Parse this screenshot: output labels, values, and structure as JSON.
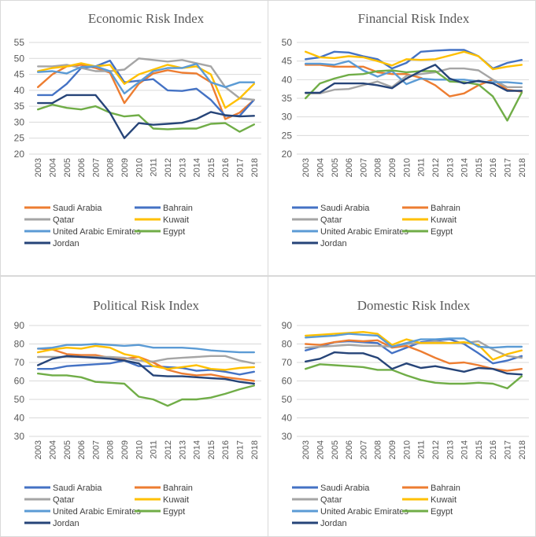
{
  "page": {
    "background": "#ffffff",
    "panel_border_color": "#d9d9d9",
    "gridline_color": "#d9d9d9",
    "title_color": "#595959",
    "axis_label_color": "#595959"
  },
  "chart_data": [
    {
      "id": "economic",
      "type": "line",
      "title": "Economic Risk Index",
      "x": [
        2003,
        2004,
        2005,
        2006,
        2007,
        2008,
        2009,
        2010,
        2011,
        2012,
        2013,
        2014,
        2015,
        2016,
        2017,
        2018
      ],
      "ylim": [
        20,
        55
      ],
      "ystep": 5,
      "grid": true,
      "legend_position": "bottom",
      "series": [
        {
          "name": "Saudi Arabia",
          "color": "#ED7D31",
          "values": [
            41,
            45,
            47.5,
            48,
            47,
            45.5,
            36,
            42,
            45.3,
            46.3,
            45.5,
            45.3,
            42.5,
            31,
            33,
            37
          ]
        },
        {
          "name": "Bahrain",
          "color": "#4472C4",
          "values": [
            38.5,
            38.5,
            42,
            47,
            47.5,
            49.3,
            42.5,
            43,
            43.5,
            40,
            39.8,
            40.5,
            37,
            32,
            32,
            37
          ]
        },
        {
          "name": "Qatar",
          "color": "#A5A5A5",
          "values": [
            47.5,
            47.5,
            48,
            47,
            46,
            46,
            46.5,
            50,
            49.5,
            49,
            49.5,
            48.5,
            47.5,
            41,
            37.5,
            37
          ]
        },
        {
          "name": "Kuwait",
          "color": "#FFC000",
          "values": [
            46,
            47,
            47.5,
            48.5,
            47.5,
            48,
            42,
            45,
            46.5,
            48,
            47,
            47.5,
            45,
            34.5,
            37.5,
            42
          ]
        },
        {
          "name": "United Arabic Emirates",
          "color": "#5B9BD5",
          "values": [
            45.7,
            46,
            45.3,
            47.3,
            47.5,
            46,
            39,
            42.5,
            46,
            47,
            47,
            48.3,
            42.5,
            41,
            42.5,
            42.5
          ]
        },
        {
          "name": "Egypt",
          "color": "#70AD47",
          "values": [
            34,
            35.5,
            34.5,
            34,
            35,
            33,
            31.8,
            32.2,
            28,
            27.8,
            28,
            28,
            29.5,
            29.7,
            27,
            29.3
          ]
        },
        {
          "name": "Jordan",
          "color": "#264478",
          "values": [
            36,
            36,
            38.5,
            38.5,
            38.5,
            33,
            25,
            29.7,
            29.2,
            29.5,
            29.8,
            31,
            33.2,
            32.2,
            31.8,
            32
          ]
        }
      ]
    },
    {
      "id": "financial",
      "type": "line",
      "title": "Financial Risk Index",
      "x": [
        2003,
        2004,
        2005,
        2006,
        2007,
        2008,
        2009,
        2010,
        2011,
        2012,
        2013,
        2014,
        2015,
        2016,
        2017,
        2018
      ],
      "ylim": [
        20,
        50
      ],
      "ystep": 5,
      "grid": true,
      "legend_position": "bottom",
      "series": [
        {
          "name": "Saudi Arabia",
          "color": "#4472C4",
          "values": [
            45.5,
            46,
            47.5,
            47.3,
            46.3,
            45.5,
            43,
            44.5,
            47.5,
            47.8,
            48,
            48,
            46.3,
            43,
            44.5,
            45.3
          ]
        },
        {
          "name": "Bahrain",
          "color": "#ED7D31",
          "values": [
            44,
            44,
            43.5,
            43.5,
            43.5,
            42,
            41.5,
            41.5,
            40.5,
            38.5,
            35.5,
            36.3,
            38.5,
            40,
            37.3,
            36.8
          ]
        },
        {
          "name": "Qatar",
          "color": "#A5A5A5",
          "values": [
            36.3,
            36.3,
            37.3,
            37.5,
            38.5,
            39.5,
            38,
            41,
            41.5,
            42,
            43,
            43,
            42.5,
            40,
            38,
            38
          ]
        },
        {
          "name": "Kuwait",
          "color": "#FFC000",
          "values": [
            47.5,
            46,
            45.8,
            46.3,
            46,
            45,
            43.8,
            45.5,
            45.3,
            45.5,
            46.5,
            47.5,
            46.3,
            42.8,
            43.5,
            44
          ]
        },
        {
          "name": "United Arabic Emirates",
          "color": "#5B9BD5",
          "values": [
            44.3,
            44.3,
            44,
            45,
            42.5,
            40.8,
            42.3,
            38.8,
            40.3,
            40,
            40,
            40,
            39.5,
            39.3,
            39.3,
            39
          ]
        },
        {
          "name": "Egypt",
          "color": "#70AD47",
          "values": [
            35,
            39,
            40.3,
            41.3,
            41.5,
            42.3,
            42.5,
            42,
            42.3,
            42.3,
            39.5,
            39.3,
            38.7,
            35.5,
            29,
            36.5
          ]
        },
        {
          "name": "Jordan",
          "color": "#264478",
          "values": [
            36.5,
            36.5,
            39,
            39,
            39,
            38.5,
            37.7,
            40.3,
            42.3,
            44,
            40.3,
            39,
            39.7,
            39,
            37,
            37
          ]
        }
      ]
    },
    {
      "id": "political",
      "type": "line",
      "title": "Political Risk Index",
      "x": [
        2003,
        2004,
        2005,
        2006,
        2007,
        2008,
        2009,
        2010,
        2011,
        2012,
        2013,
        2014,
        2015,
        2016,
        2017,
        2018
      ],
      "ylim": [
        30,
        90
      ],
      "ystep": 10,
      "grid": true,
      "legend_position": "bottom",
      "series": [
        {
          "name": "Saudi Arabia",
          "color": "#4472C4",
          "values": [
            66.5,
            66.5,
            68,
            68.5,
            69,
            69.5,
            71,
            68,
            68,
            67.5,
            67,
            65.5,
            66,
            65,
            63.5,
            65
          ]
        },
        {
          "name": "Bahrain",
          "color": "#ED7D31",
          "values": [
            77.5,
            77,
            74.5,
            74,
            74,
            72.5,
            72,
            73,
            70,
            66,
            64,
            63,
            63.5,
            62,
            61,
            60
          ]
        },
        {
          "name": "Qatar",
          "color": "#A5A5A5",
          "values": [
            73,
            73,
            73,
            73,
            73,
            73,
            72.5,
            71,
            70.5,
            72,
            72.5,
            73,
            73.5,
            73.5,
            71,
            69.5
          ]
        },
        {
          "name": "Kuwait",
          "color": "#FFC000",
          "values": [
            75.5,
            77,
            78,
            77.5,
            79,
            78,
            74.5,
            73,
            68,
            66.5,
            67.5,
            68.5,
            66.5,
            66,
            67,
            67.5
          ]
        },
        {
          "name": "United Arabic Emirates",
          "color": "#5B9BD5",
          "values": [
            77.5,
            78,
            79.5,
            79.5,
            80,
            79.5,
            79,
            79.5,
            78,
            78,
            78,
            77.5,
            76.5,
            76,
            75.5,
            75.5
          ]
        },
        {
          "name": "Egypt",
          "color": "#70AD47",
          "values": [
            64,
            63,
            63,
            62,
            59.5,
            59,
            58.5,
            51.5,
            50,
            46.5,
            50,
            50,
            51,
            53,
            55.5,
            57.5
          ]
        },
        {
          "name": "Jordan",
          "color": "#264478",
          "values": [
            68.5,
            72,
            73.5,
            73,
            72.5,
            72,
            71,
            69.5,
            63,
            62.5,
            62.5,
            62,
            61.5,
            61,
            59.5,
            58.5
          ]
        }
      ]
    },
    {
      "id": "domestic",
      "type": "line",
      "title": "Domestic Risk Index",
      "x": [
        2003,
        2004,
        2005,
        2006,
        2007,
        2008,
        2009,
        2010,
        2011,
        2012,
        2013,
        2014,
        2015,
        2016,
        2017,
        2018
      ],
      "ylim": [
        30,
        90
      ],
      "ystep": 10,
      "grid": true,
      "legend_position": "bottom",
      "series": [
        {
          "name": "Saudi Arabia",
          "color": "#4472C4",
          "values": [
            76.5,
            78.5,
            81,
            81.5,
            81,
            80.5,
            75,
            78,
            81,
            82,
            82.5,
            80,
            75,
            69.5,
            71,
            73.5
          ]
        },
        {
          "name": "Bahrain",
          "color": "#ED7D31",
          "values": [
            80,
            79.5,
            81,
            82,
            81.5,
            82,
            78,
            79,
            76,
            72.5,
            69.5,
            70,
            68.5,
            66.5,
            65.5,
            66.5
          ]
        },
        {
          "name": "Qatar",
          "color": "#A5A5A5",
          "values": [
            78,
            78.5,
            79,
            79.5,
            79,
            79,
            78.5,
            80,
            80.5,
            81.5,
            80.5,
            80.5,
            81.5,
            77,
            73.5,
            72.5
          ]
        },
        {
          "name": "Kuwait",
          "color": "#FFC000",
          "values": [
            84.5,
            85,
            85.5,
            86,
            86.5,
            85.5,
            79.5,
            82.5,
            80.5,
            80.5,
            80.5,
            81,
            79.5,
            71.5,
            74.5,
            76.5
          ]
        },
        {
          "name": "United Arabic Emirates",
          "color": "#5B9BD5",
          "values": [
            83.5,
            84,
            84.5,
            85.5,
            85,
            84.5,
            78.5,
            80.5,
            82.5,
            82.5,
            83,
            83,
            78.5,
            78,
            78.5,
            78.5
          ]
        },
        {
          "name": "Egypt",
          "color": "#70AD47",
          "values": [
            66.5,
            69,
            68.5,
            68,
            67.5,
            66,
            66,
            63,
            60.5,
            59,
            58.5,
            58.5,
            59,
            58.5,
            56,
            62.5
          ]
        },
        {
          "name": "Jordan",
          "color": "#264478",
          "values": [
            70.5,
            72,
            75.5,
            75,
            75,
            72.5,
            66.5,
            69.5,
            67,
            68,
            66.5,
            65,
            67,
            66.5,
            64,
            63.5
          ]
        }
      ]
    }
  ]
}
